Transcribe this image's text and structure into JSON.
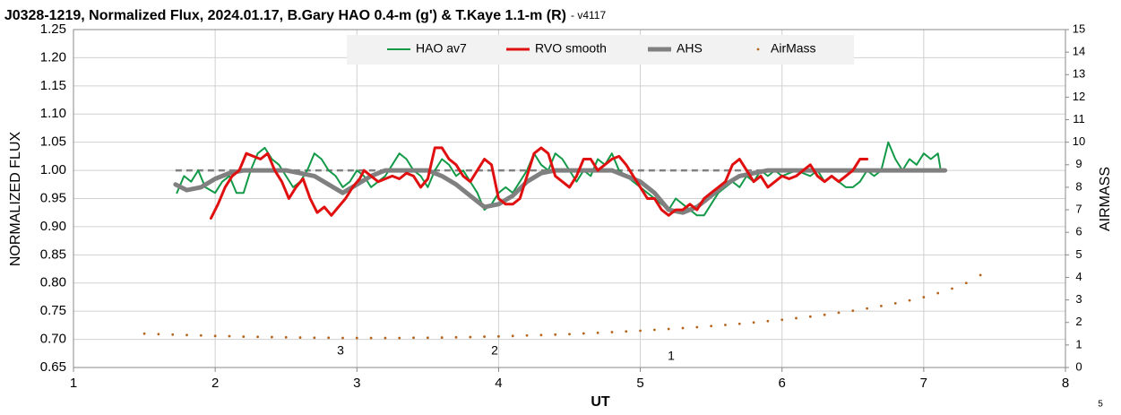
{
  "chart_data": {
    "type": "line",
    "title": "J0328-1219, Normalized Flux, 2024.01.17, B.Gary HAO 0.4-m (g') & T.Kaye 1.1-m (R)",
    "subtitle": "- v4117",
    "x_label": "UT",
    "y_label": "NORMALIZED FLUX",
    "y2_label": "AIRMASS",
    "annotations": [
      "3",
      "2",
      "1",
      "5"
    ],
    "xlim": [
      1,
      8
    ],
    "xticks": [
      1,
      2,
      3,
      4,
      5,
      6,
      7,
      8
    ],
    "ylim": [
      0.65,
      1.25
    ],
    "yticks": [
      0.65,
      {
        "value": 0.7,
        "label": "0.70"
      },
      0.75,
      {
        "value": 0.8,
        "label": "0.80"
      },
      0.85,
      {
        "value": 0.9,
        "label": "0.90"
      },
      0.95,
      {
        "value": 1.0,
        "label": "1.00"
      },
      1.05,
      {
        "value": 1.1,
        "label": "1.10"
      },
      1.15,
      {
        "value": 1.2,
        "label": "1.20"
      },
      1.25
    ],
    "y2lim": [
      0,
      15
    ],
    "y2ticks": [
      0,
      1,
      2,
      3,
      4,
      5,
      6,
      7,
      8,
      9,
      10,
      11,
      12,
      13,
      14,
      15
    ],
    "grid": true,
    "legend": "top",
    "reference_line": {
      "y": 1.0,
      "x": [
        1.72,
        7.15
      ],
      "color": "#808080"
    },
    "series": [
      {
        "name": "HAO av7",
        "color": "#139a48",
        "style": "line",
        "x": [
          1.73,
          1.78,
          1.83,
          1.88,
          1.93,
          2.0,
          2.05,
          2.1,
          2.15,
          2.2,
          2.25,
          2.3,
          2.35,
          2.4,
          2.45,
          2.5,
          2.55,
          2.6,
          2.65,
          2.7,
          2.75,
          2.8,
          2.85,
          2.9,
          2.95,
          3.0,
          3.05,
          3.1,
          3.15,
          3.2,
          3.25,
          3.3,
          3.35,
          3.4,
          3.45,
          3.5,
          3.55,
          3.6,
          3.65,
          3.7,
          3.75,
          3.8,
          3.85,
          3.9,
          3.95,
          4.0,
          4.05,
          4.1,
          4.15,
          4.2,
          4.25,
          4.3,
          4.35,
          4.4,
          4.45,
          4.5,
          4.55,
          4.6,
          4.65,
          4.7,
          4.75,
          4.8,
          4.85,
          4.9,
          4.95,
          5.0,
          5.05,
          5.1,
          5.15,
          5.2,
          5.25,
          5.3,
          5.35,
          5.4,
          5.45,
          5.5,
          5.55,
          5.6,
          5.65,
          5.7,
          5.75,
          5.8,
          5.85,
          5.9,
          5.95,
          6.0,
          6.1,
          6.2,
          6.25,
          6.3,
          6.35,
          6.4,
          6.45,
          6.5,
          6.55,
          6.6,
          6.65,
          6.7,
          6.75,
          6.8,
          6.85,
          6.9,
          6.95,
          7.0,
          7.05,
          7.1,
          7.12
        ],
        "values": [
          0.96,
          0.99,
          0.98,
          1.0,
          0.97,
          0.96,
          0.98,
          0.99,
          0.96,
          0.96,
          1.0,
          1.03,
          1.04,
          1.02,
          1.01,
          0.99,
          0.97,
          0.98,
          1.0,
          1.03,
          1.02,
          1.0,
          0.99,
          0.97,
          0.98,
          1.0,
          0.99,
          0.97,
          0.98,
          0.99,
          1.01,
          1.03,
          1.02,
          1.0,
          0.99,
          0.97,
          1.0,
          1.02,
          1.01,
          0.99,
          1.0,
          0.98,
          0.96,
          0.93,
          0.94,
          0.96,
          0.97,
          0.96,
          0.98,
          1.0,
          1.03,
          1.01,
          1.0,
          1.03,
          1.02,
          1.0,
          0.98,
          1.0,
          0.99,
          1.02,
          1.01,
          1.03,
          1.0,
          0.99,
          0.98,
          0.97,
          0.96,
          0.95,
          0.94,
          0.93,
          0.95,
          0.94,
          0.93,
          0.92,
          0.92,
          0.94,
          0.96,
          0.97,
          0.98,
          0.97,
          0.99,
          0.98,
          1.0,
          0.99,
          1.0,
          0.99,
          1.0,
          0.99,
          1.0,
          0.98,
          0.99,
          0.98,
          0.97,
          0.97,
          0.98,
          1.0,
          0.99,
          1.0,
          1.05,
          1.02,
          1.0,
          1.02,
          1.01,
          1.03,
          1.02,
          1.03,
          1.0
        ]
      },
      {
        "name": "RVO smooth",
        "color": "#e01010",
        "style": "line",
        "x": [
          1.97,
          2.02,
          2.07,
          2.12,
          2.17,
          2.22,
          2.27,
          2.32,
          2.37,
          2.42,
          2.47,
          2.52,
          2.57,
          2.62,
          2.67,
          2.72,
          2.77,
          2.82,
          2.87,
          2.92,
          2.97,
          3.02,
          3.05,
          3.1,
          3.15,
          3.2,
          3.25,
          3.3,
          3.35,
          3.4,
          3.45,
          3.5,
          3.55,
          3.6,
          3.65,
          3.7,
          3.75,
          3.8,
          3.85,
          3.9,
          3.95,
          4.0,
          4.05,
          4.1,
          4.15,
          4.2,
          4.25,
          4.3,
          4.35,
          4.4,
          4.45,
          4.5,
          4.55,
          4.6,
          4.65,
          4.7,
          4.75,
          4.8,
          4.85,
          4.9,
          4.95,
          5.0,
          5.05,
          5.1,
          5.15,
          5.2,
          5.25,
          5.3,
          5.35,
          5.4,
          5.45,
          5.5,
          5.55,
          5.6,
          5.65,
          5.7,
          5.75,
          5.8,
          5.85,
          5.9,
          5.95,
          6.0,
          6.05,
          6.1,
          6.15,
          6.2,
          6.25,
          6.3,
          6.35,
          6.4,
          6.45,
          6.5,
          6.55,
          6.6
        ],
        "values": [
          0.915,
          0.94,
          0.97,
          0.99,
          1.0,
          1.03,
          1.025,
          1.02,
          1.03,
          1.0,
          0.98,
          0.95,
          0.97,
          0.985,
          0.95,
          0.925,
          0.935,
          0.92,
          0.935,
          0.95,
          0.97,
          0.985,
          1.0,
          0.99,
          0.98,
          0.985,
          0.99,
          0.985,
          0.995,
          0.99,
          0.97,
          0.985,
          1.04,
          1.04,
          1.02,
          1.01,
          0.99,
          0.98,
          1.0,
          1.02,
          1.01,
          0.95,
          0.94,
          0.94,
          0.95,
          0.99,
          1.03,
          1.04,
          1.03,
          0.99,
          0.98,
          0.97,
          0.99,
          1.02,
          1.02,
          1.0,
          1.01,
          1.02,
          1.025,
          1.01,
          0.99,
          0.97,
          0.95,
          0.95,
          0.93,
          0.92,
          0.93,
          0.93,
          0.94,
          0.93,
          0.95,
          0.96,
          0.97,
          0.98,
          1.01,
          1.02,
          1.0,
          0.98,
          0.99,
          0.97,
          0.98,
          0.99,
          0.985,
          0.99,
          1.0,
          1.01,
          0.99,
          0.98,
          0.99,
          0.98,
          0.99,
          1.0,
          1.02,
          1.02
        ]
      },
      {
        "name": "AHS",
        "color": "#808080",
        "style": "thick",
        "x": [
          1.72,
          1.8,
          1.9,
          2.0,
          2.1,
          2.2,
          2.5,
          2.6,
          2.7,
          2.8,
          2.9,
          3.0,
          3.1,
          3.2,
          3.5,
          3.6,
          3.7,
          3.8,
          3.9,
          4.0,
          4.1,
          4.2,
          4.3,
          4.4,
          4.8,
          4.9,
          5.0,
          5.1,
          5.2,
          5.3,
          5.4,
          5.5,
          5.6,
          5.7,
          5.8,
          5.9,
          7.15
        ],
        "values": [
          0.975,
          0.965,
          0.97,
          0.985,
          0.995,
          1.0,
          1.0,
          0.995,
          0.99,
          0.975,
          0.96,
          0.975,
          0.99,
          1.0,
          1.0,
          0.99,
          0.975,
          0.955,
          0.935,
          0.94,
          0.955,
          0.98,
          0.995,
          1.0,
          1.0,
          0.99,
          0.98,
          0.96,
          0.93,
          0.925,
          0.935,
          0.955,
          0.975,
          0.99,
          0.995,
          1.0,
          1.0
        ]
      },
      {
        "name": "AirMass",
        "color": "#b5651d",
        "style": "dots",
        "axis": "y2",
        "x": [
          1.5,
          1.6,
          1.7,
          1.8,
          1.9,
          2.0,
          2.1,
          2.2,
          2.3,
          2.4,
          2.5,
          2.6,
          2.7,
          2.8,
          2.9,
          3.0,
          3.1,
          3.2,
          3.3,
          3.4,
          3.5,
          3.6,
          3.7,
          3.8,
          3.9,
          4.0,
          4.1,
          4.2,
          4.3,
          4.4,
          4.5,
          4.6,
          4.7,
          4.8,
          4.9,
          5.0,
          5.1,
          5.2,
          5.3,
          5.4,
          5.5,
          5.6,
          5.7,
          5.8,
          5.9,
          6.0,
          6.1,
          6.2,
          6.3,
          6.4,
          6.5,
          6.6,
          6.7,
          6.8,
          6.9,
          7.0,
          7.1,
          7.2,
          7.3,
          7.4
        ],
        "values": [
          1.5,
          1.48,
          1.46,
          1.44,
          1.42,
          1.4,
          1.39,
          1.37,
          1.36,
          1.35,
          1.34,
          1.33,
          1.32,
          1.32,
          1.31,
          1.31,
          1.31,
          1.31,
          1.31,
          1.32,
          1.32,
          1.33,
          1.34,
          1.35,
          1.37,
          1.38,
          1.4,
          1.42,
          1.44,
          1.46,
          1.48,
          1.51,
          1.54,
          1.57,
          1.6,
          1.63,
          1.67,
          1.71,
          1.75,
          1.79,
          1.84,
          1.89,
          1.94,
          2.0,
          2.06,
          2.12,
          2.19,
          2.26,
          2.34,
          2.43,
          2.52,
          2.62,
          2.73,
          2.85,
          2.98,
          3.12,
          3.3,
          3.5,
          3.75,
          4.1
        ]
      }
    ]
  }
}
